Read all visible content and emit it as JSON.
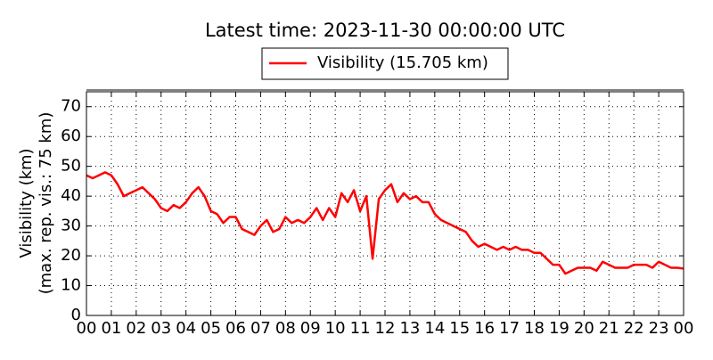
{
  "chart_data": {
    "type": "line",
    "title": "Latest time: 2023-11-30 00:00:00 UTC",
    "y_label": [
      "Visibility (km)",
      "(max. rep. vis.: 75 km)"
    ],
    "x": [
      0,
      0.25,
      0.5,
      0.75,
      1,
      1.25,
      1.5,
      1.75,
      2,
      2.25,
      2.5,
      2.75,
      3,
      3.25,
      3.5,
      3.75,
      4,
      4.25,
      4.5,
      4.75,
      5,
      5.25,
      5.5,
      5.75,
      6,
      6.25,
      6.5,
      6.75,
      7,
      7.25,
      7.5,
      7.75,
      8,
      8.25,
      8.5,
      8.75,
      9,
      9.25,
      9.5,
      9.75,
      10,
      10.25,
      10.5,
      10.75,
      11,
      11.25,
      11.5,
      11.75,
      12,
      12.25,
      12.5,
      12.75,
      13,
      13.25,
      13.5,
      13.75,
      14,
      14.25,
      14.5,
      14.75,
      15,
      15.25,
      15.5,
      15.75,
      16,
      16.25,
      16.5,
      16.75,
      17,
      17.25,
      17.5,
      17.75,
      18,
      18.25,
      18.5,
      18.75,
      19,
      19.25,
      19.5,
      19.75,
      20,
      20.25,
      20.5,
      20.75,
      21,
      21.25,
      21.5,
      21.75,
      22,
      22.25,
      22.5,
      22.75,
      23,
      23.25,
      23.5,
      23.75,
      24
    ],
    "series": [
      {
        "name": "Visibility (15.705 km)",
        "color": "#ff0000",
        "values": [
          47,
          46,
          47,
          48,
          47,
          44,
          40,
          41,
          42,
          43,
          41,
          39,
          36,
          35,
          37,
          36,
          38,
          41,
          43,
          40,
          35,
          34,
          31,
          33,
          33,
          29,
          28,
          27,
          30,
          32,
          28,
          29,
          33,
          31,
          32,
          31,
          33,
          36,
          32,
          36,
          33,
          41,
          38,
          42,
          35,
          40,
          19,
          39,
          42,
          44,
          38,
          41,
          39,
          40,
          38,
          38,
          34,
          32,
          31,
          30,
          29,
          28,
          25,
          23,
          24,
          23,
          22,
          23,
          22,
          23,
          22,
          22,
          21,
          21,
          19,
          17,
          17,
          14,
          15,
          16,
          16,
          16,
          15,
          18,
          17,
          16,
          16,
          16,
          17,
          17,
          17,
          16,
          18,
          17,
          16,
          16,
          15.705
        ]
      }
    ],
    "xlim": [
      0,
      24
    ],
    "xticks": [
      {
        "value": 0,
        "label": "00"
      },
      {
        "value": 1,
        "label": "01"
      },
      {
        "value": 2,
        "label": "02"
      },
      {
        "value": 3,
        "label": "03"
      },
      {
        "value": 4,
        "label": "04"
      },
      {
        "value": 5,
        "label": "05"
      },
      {
        "value": 6,
        "label": "06"
      },
      {
        "value": 7,
        "label": "07"
      },
      {
        "value": 8,
        "label": "08"
      },
      {
        "value": 9,
        "label": "09"
      },
      {
        "value": 10,
        "label": "10"
      },
      {
        "value": 11,
        "label": "11"
      },
      {
        "value": 12,
        "label": "12"
      },
      {
        "value": 13,
        "label": "13"
      },
      {
        "value": 14,
        "label": "14"
      },
      {
        "value": 15,
        "label": "15"
      },
      {
        "value": 16,
        "label": "16"
      },
      {
        "value": 17,
        "label": "17"
      },
      {
        "value": 18,
        "label": "18"
      },
      {
        "value": 19,
        "label": "19"
      },
      {
        "value": 20,
        "label": "20"
      },
      {
        "value": 21,
        "label": "21"
      },
      {
        "value": 22,
        "label": "22"
      },
      {
        "value": 23,
        "label": "23"
      },
      {
        "value": 24,
        "label": "00"
      }
    ],
    "ylim": [
      0,
      75
    ],
    "yticks": [
      0,
      10,
      20,
      30,
      40,
      50,
      60,
      70
    ],
    "grid": true
  }
}
